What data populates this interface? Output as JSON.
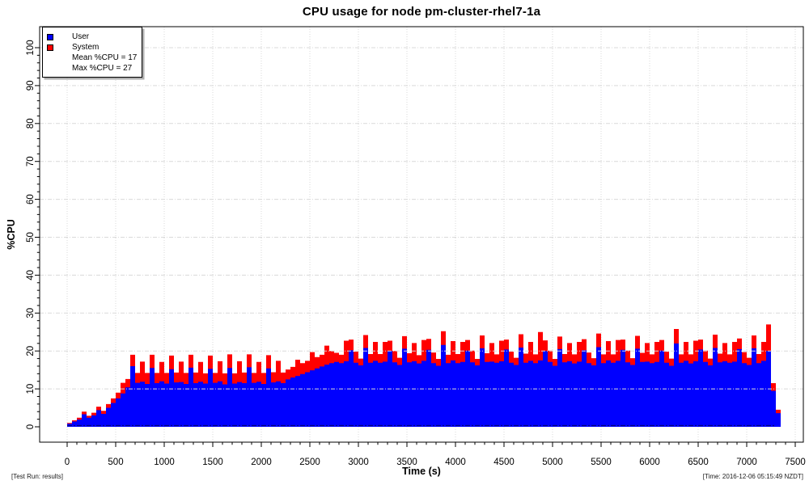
{
  "chart": {
    "title": "CPU usage for node pm-cluster-rhel7-1a",
    "x_axis_label": "Time (s)",
    "y_axis_label": "%CPU",
    "footer_left": "[Test Run: results]",
    "footer_right": "[Time: 2016-12-06 05:15:49 NZDT]",
    "legend": {
      "user_label": "User",
      "system_label": "System",
      "mean_text": "Mean %CPU = 17",
      "max_text": "Max %CPU = 27"
    },
    "colors": {
      "user": "#0000ff",
      "system": "#ff0000",
      "grid": "#d9d9d9",
      "axis": "#000000",
      "baseline": "#000066",
      "background": "#ffffff"
    }
  },
  "chart_data": {
    "type": "area",
    "stacked": true,
    "title": "CPU usage for node pm-cluster-rhel7-1a",
    "xlabel": "Time (s)",
    "ylabel": "%CPU",
    "xlim": [
      0,
      7500
    ],
    "ylim": [
      0,
      100
    ],
    "x_tick_step": 500,
    "x_minor_tick_step": 100,
    "y_tick_step": 10,
    "y_minor_tick_step": 2,
    "grid": true,
    "legend_position": "top-left",
    "mean_pct_cpu": 17,
    "max_pct_cpu": 27,
    "x_start": 0,
    "x_step": 50,
    "series": [
      {
        "name": "User",
        "color": "#0000ff",
        "values": [
          0.8,
          1.4,
          1.9,
          3.3,
          2.4,
          3.0,
          4.4,
          3.4,
          5.0,
          6.3,
          7.5,
          8.8,
          10.4,
          16.0,
          11.6,
          11.9,
          11.3,
          15.5,
          11.5,
          12.0,
          11.4,
          15.2,
          11.7,
          11.8,
          11.3,
          15.6,
          11.5,
          11.9,
          11.4,
          15.3,
          11.6,
          12.0,
          11.2,
          15.5,
          11.4,
          11.8,
          11.5,
          15.7,
          11.6,
          11.9,
          11.3,
          15.4,
          11.7,
          12.0,
          11.5,
          12.5,
          13.0,
          13.4,
          13.9,
          14.4,
          14.9,
          15.4,
          15.9,
          16.4,
          16.8,
          17.1,
          16.8,
          17.3,
          20.2,
          16.9,
          16.2,
          20.8,
          16.9,
          17.4,
          16.9,
          17.2,
          20.0,
          17.0,
          16.3,
          20.6,
          17.0,
          17.3,
          16.7,
          17.4,
          20.3,
          16.8,
          16.1,
          21.6,
          16.8,
          17.5,
          16.8,
          17.1,
          20.1,
          17.0,
          16.2,
          20.7,
          17.1,
          17.2,
          16.9,
          17.3,
          20.4,
          16.9,
          16.3,
          20.9,
          16.9,
          17.4,
          16.8,
          17.5,
          20.0,
          17.1,
          16.1,
          20.5,
          17.0,
          17.3,
          16.7,
          17.2,
          20.2,
          16.8,
          16.2,
          21.0,
          16.8,
          17.5,
          16.9,
          17.4,
          20.3,
          17.0,
          16.3,
          20.6,
          17.1,
          17.2,
          16.8,
          17.1,
          20.1,
          16.9,
          16.1,
          22.0,
          16.9,
          17.4,
          16.7,
          17.3,
          20.4,
          17.1,
          16.2,
          20.8,
          17.0,
          17.3,
          16.9,
          17.2,
          20.5,
          16.8,
          16.3,
          20.7,
          16.8,
          17.4,
          20.0,
          9.5,
          3.6
        ]
      },
      {
        "name": "System",
        "color": "#ff0000",
        "values": [
          0.2,
          0.3,
          0.5,
          0.7,
          0.5,
          0.7,
          0.9,
          0.8,
          1.0,
          1.2,
          1.5,
          2.8,
          2.2,
          3.0,
          2.6,
          5.3,
          2.9,
          3.5,
          2.7,
          5.1,
          2.8,
          3.6,
          2.6,
          5.4,
          2.9,
          3.4,
          2.8,
          5.2,
          2.7,
          3.5,
          2.6,
          5.3,
          2.9,
          3.6,
          2.7,
          5.5,
          2.8,
          3.4,
          2.6,
          5.2,
          2.9,
          3.5,
          2.7,
          5.4,
          2.8,
          2.6,
          2.8,
          4.3,
          2.9,
          3.0,
          4.8,
          3.0,
          3.1,
          5.0,
          3.2,
          2.4,
          2.2,
          5.4,
          2.8,
          2.9,
          1.8,
          3.4,
          2.3,
          5.0,
          2.3,
          5.2,
          2.7,
          3.0,
          1.9,
          3.3,
          2.4,
          4.8,
          2.2,
          5.5,
          2.9,
          2.8,
          1.8,
          3.6,
          2.2,
          5.1,
          2.4,
          5.3,
          2.8,
          3.1,
          1.7,
          3.4,
          2.3,
          4.9,
          2.2,
          5.4,
          2.6,
          2.9,
          1.9,
          3.5,
          2.4,
          5.0,
          2.3,
          7.5,
          2.8,
          3.0,
          1.8,
          3.3,
          2.2,
          4.8,
          2.4,
          5.2,
          2.9,
          2.8,
          1.9,
          3.6,
          2.3,
          5.1,
          2.2,
          5.5,
          2.7,
          3.1,
          1.8,
          3.4,
          2.4,
          4.9,
          2.3,
          5.3,
          2.8,
          2.9,
          1.9,
          3.8,
          2.2,
          5.0,
          2.4,
          5.4,
          2.6,
          3.0,
          1.8,
          3.5,
          2.3,
          4.8,
          2.2,
          5.2,
          2.8,
          2.9,
          1.9,
          3.4,
          2.4,
          5.0,
          7.0,
          2.0,
          0.9
        ]
      }
    ]
  }
}
